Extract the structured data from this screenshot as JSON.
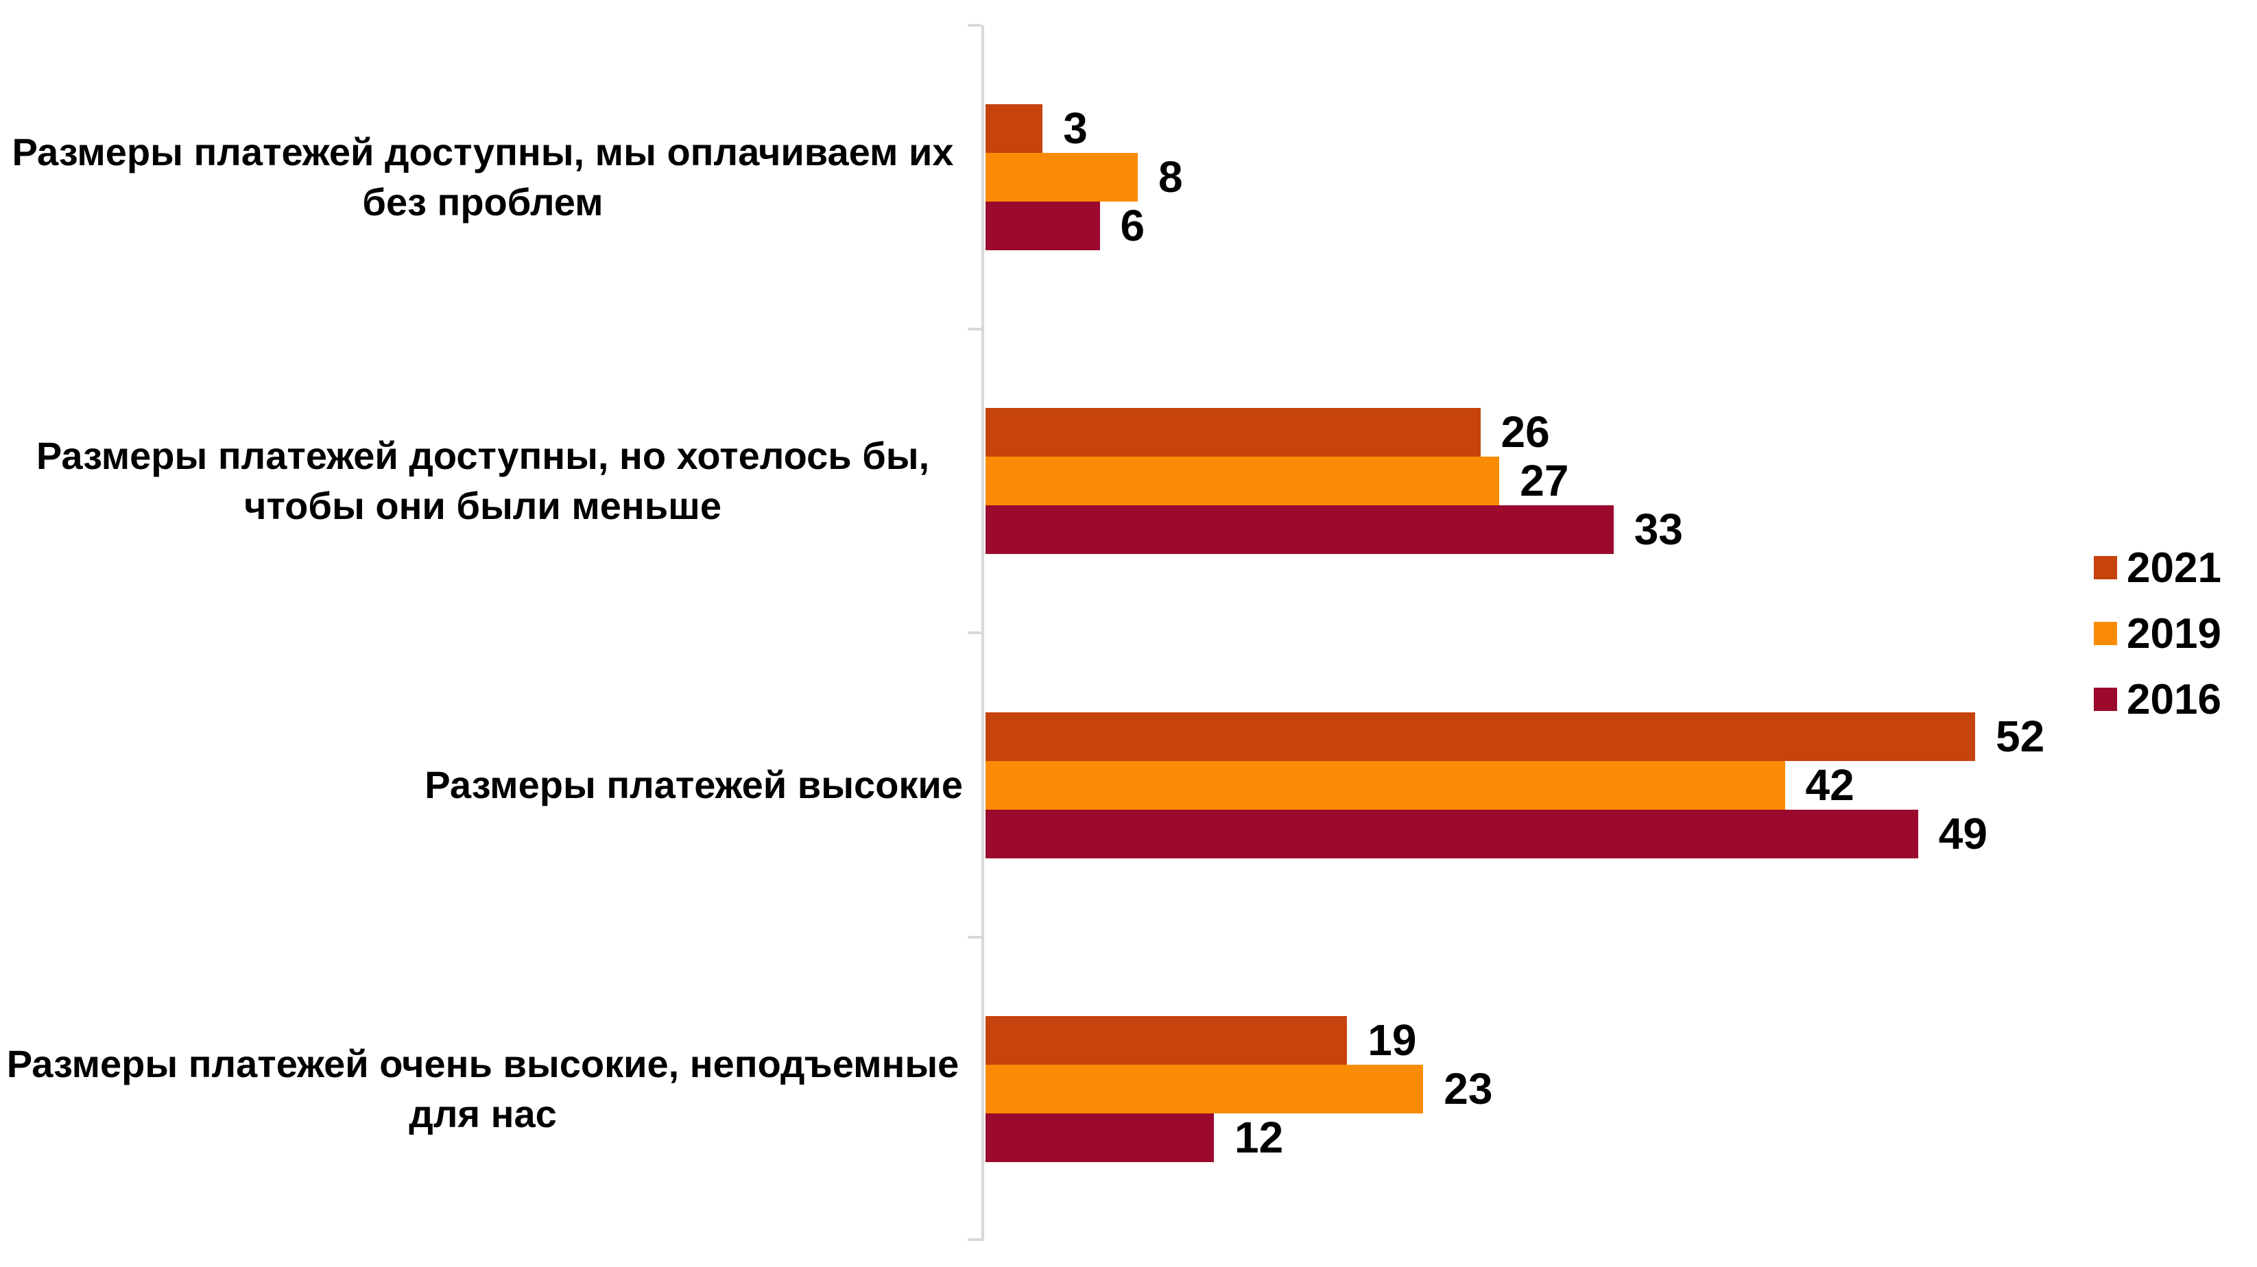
{
  "chart_data": {
    "type": "bar",
    "orientation": "horizontal",
    "title": "",
    "categories": [
      "Размеры платежей доступны, мы оплачиваем их без проблем",
      "Размеры платежей доступны, но хотелось бы, чтобы они были меньше",
      "Размеры платежей высокие",
      "Размеры платежей очень высокие, неподъемные для нас"
    ],
    "series": [
      {
        "name": "2021",
        "color": "#C6430E",
        "values": [
          3,
          26,
          52,
          19
        ]
      },
      {
        "name": "2019",
        "color": "#FA8C05",
        "values": [
          8,
          27,
          42,
          23
        ]
      },
      {
        "name": "2016",
        "color": "#9B0A2D",
        "values": [
          6,
          33,
          49,
          12
        ]
      }
    ],
    "xlim": [
      0,
      56
    ],
    "value_labels": true,
    "grid": false,
    "legend_position": "right",
    "axis_color": "#D9D9D9"
  }
}
